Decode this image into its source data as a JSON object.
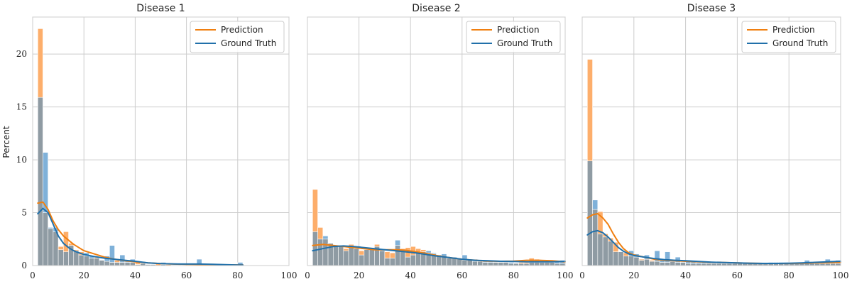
{
  "chart_data": {
    "type": "bar",
    "ylabel": "Percent",
    "xlim": [
      0,
      100
    ],
    "ylim": [
      0,
      23.5
    ],
    "bin_width": 2,
    "bin_start": 2,
    "x_ticks": [
      0,
      20,
      40,
      60,
      80,
      100
    ],
    "y_ticks": [
      0,
      5,
      10,
      15,
      20
    ],
    "grid": true,
    "legend_position": "top-right",
    "colors": {
      "prediction_fill": "#fdae6b",
      "ground_truth_fill": "#7fb1d9",
      "overlap_fill": "#8f9ba3",
      "prediction_line": "#f07f10",
      "ground_truth_line": "#2170aa"
    },
    "panels": [
      {
        "title": "Disease 1",
        "series": [
          {
            "name": "Prediction",
            "values": [
              22.4,
              5.0,
              3.5,
              3.2,
              1.8,
              3.2,
              2.1,
              1.5,
              1.3,
              0.9,
              0.7,
              0.8,
              0.5,
              0.4,
              0.3,
              0.5,
              0.3,
              0.3,
              0.3,
              0.4,
              0.2,
              0.1,
              0.1,
              0.2,
              0.1,
              0.1,
              0.0,
              0.0,
              0.0,
              0.0,
              0.0,
              0.0,
              0.0,
              0.0,
              0.0,
              0.0,
              0.0,
              0.0,
              0.0,
              0.0,
              0.0,
              0.0,
              0.0,
              0.0,
              0.0,
              0.0,
              0.0,
              0.0,
              0.0,
              0.0
            ],
            "kde_x": [
              2,
              4,
              6,
              8,
              10,
              12,
              14,
              16,
              18,
              20,
              24,
              28,
              32,
              36,
              40,
              45,
              50,
              55,
              60,
              65,
              70,
              75,
              80,
              82
            ],
            "kde_y": [
              5.9,
              6.0,
              5.3,
              4.2,
              3.4,
              2.8,
              2.4,
              2.0,
              1.7,
              1.4,
              1.1,
              0.8,
              0.6,
              0.45,
              0.35,
              0.25,
              0.18,
              0.14,
              0.12,
              0.1,
              0.08,
              0.07,
              0.06,
              0.06
            ]
          },
          {
            "name": "Ground Truth",
            "values": [
              15.9,
              10.7,
              3.6,
              3.6,
              1.5,
              1.3,
              1.9,
              1.4,
              1.0,
              1.2,
              0.9,
              0.7,
              0.5,
              0.9,
              1.9,
              0.3,
              1.0,
              0.5,
              0.6,
              0.1,
              0.2,
              0.1,
              0.1,
              0.0,
              0.3,
              0.0,
              0.0,
              0.0,
              0.0,
              0.0,
              0.0,
              0.6,
              0.0,
              0.0,
              0.0,
              0.0,
              0.0,
              0.0,
              0.0,
              0.3,
              0.0,
              0.0,
              0.0,
              0.0,
              0.0,
              0.0,
              0.0,
              0.0,
              0.0,
              0.0
            ],
            "kde_x": [
              2,
              4,
              6,
              8,
              10,
              12,
              14,
              16,
              18,
              20,
              24,
              28,
              32,
              36,
              40,
              45,
              50,
              55,
              60,
              65,
              70,
              75,
              80,
              82
            ],
            "kde_y": [
              4.9,
              5.4,
              5.0,
              3.9,
              2.8,
              2.1,
              1.7,
              1.4,
              1.2,
              1.05,
              0.85,
              0.7,
              0.6,
              0.5,
              0.4,
              0.25,
              0.18,
              0.15,
              0.14,
              0.14,
              0.12,
              0.08,
              0.05,
              0.05
            ]
          }
        ]
      },
      {
        "title": "Disease 2",
        "series": [
          {
            "name": "Prediction",
            "values": [
              7.2,
              3.6,
              2.5,
              2.1,
              1.9,
              1.8,
              1.6,
              2.0,
              1.6,
              1.4,
              1.5,
              1.7,
              2.0,
              1.4,
              1.3,
              1.2,
              1.9,
              1.6,
              1.7,
              1.8,
              1.6,
              1.5,
              1.2,
              1.1,
              1.0,
              0.8,
              0.8,
              0.7,
              0.6,
              0.5,
              0.6,
              0.4,
              0.4,
              0.3,
              0.3,
              0.3,
              0.3,
              0.3,
              0.2,
              0.2,
              0.3,
              0.3,
              0.7,
              0.6,
              0.5,
              0.4,
              0.3,
              0.2,
              0.2,
              0.2
            ],
            "kde_x": [
              2,
              6,
              10,
              14,
              18,
              22,
              26,
              30,
              34,
              38,
              42,
              46,
              50,
              55,
              60,
              65,
              70,
              75,
              80,
              85,
              90,
              95,
              100
            ],
            "kde_y": [
              1.9,
              2.0,
              1.9,
              1.8,
              1.7,
              1.6,
              1.5,
              1.5,
              1.5,
              1.45,
              1.3,
              1.15,
              0.95,
              0.75,
              0.6,
              0.5,
              0.42,
              0.4,
              0.42,
              0.5,
              0.5,
              0.45,
              0.35
            ]
          },
          {
            "name": "Ground Truth",
            "values": [
              3.2,
              2.5,
              2.8,
              2.1,
              1.9,
              1.8,
              1.4,
              1.8,
              1.6,
              1.0,
              1.5,
              1.6,
              1.8,
              1.5,
              0.7,
              0.7,
              2.4,
              1.5,
              0.8,
              1.0,
              1.2,
              1.3,
              1.4,
              1.2,
              1.0,
              1.1,
              0.7,
              0.8,
              0.7,
              1.0,
              0.5,
              0.6,
              0.5,
              0.4,
              0.4,
              0.3,
              0.3,
              0.3,
              0.3,
              0.2,
              0.2,
              0.2,
              0.3,
              0.3,
              0.3,
              0.3,
              0.4,
              0.4,
              0.5,
              1.2
            ],
            "kde_x": [
              2,
              6,
              10,
              14,
              18,
              22,
              26,
              30,
              34,
              38,
              42,
              46,
              50,
              55,
              60,
              65,
              70,
              75,
              80,
              85,
              90,
              95,
              100
            ],
            "kde_y": [
              1.4,
              1.6,
              1.8,
              1.85,
              1.8,
              1.7,
              1.6,
              1.5,
              1.4,
              1.3,
              1.2,
              1.05,
              0.9,
              0.75,
              0.6,
              0.5,
              0.45,
              0.4,
              0.38,
              0.35,
              0.35,
              0.35,
              0.4
            ]
          }
        ]
      },
      {
        "title": "Disease 3",
        "series": [
          {
            "name": "Prediction",
            "values": [
              19.5,
              5.3,
              5.1,
              3.0,
              2.6,
              2.2,
              1.3,
              1.2,
              0.9,
              0.8,
              0.6,
              0.6,
              0.5,
              0.4,
              0.3,
              0.3,
              0.4,
              0.3,
              0.3,
              0.2,
              0.2,
              0.2,
              0.2,
              0.2,
              0.2,
              0.2,
              0.2,
              0.2,
              0.2,
              0.2,
              0.2,
              0.2,
              0.2,
              0.2,
              0.2,
              0.2,
              0.2,
              0.2,
              0.2,
              0.2,
              0.2,
              0.2,
              0.2,
              0.2,
              0.2,
              0.2,
              0.2,
              0.2,
              0.2,
              0.2
            ],
            "kde_x": [
              2,
              4,
              6,
              8,
              10,
              12,
              14,
              16,
              18,
              20,
              24,
              28,
              32,
              36,
              40,
              45,
              50,
              55,
              60,
              65,
              70,
              75,
              80,
              85,
              90,
              95,
              100
            ],
            "kde_y": [
              4.5,
              4.8,
              4.9,
              4.5,
              3.9,
              3.0,
              2.2,
              1.6,
              1.2,
              1.0,
              0.8,
              0.6,
              0.5,
              0.45,
              0.4,
              0.35,
              0.3,
              0.28,
              0.25,
              0.22,
              0.2,
              0.2,
              0.2,
              0.22,
              0.25,
              0.27,
              0.3
            ]
          },
          {
            "name": "Ground Truth",
            "values": [
              9.9,
              6.2,
              3.0,
              2.7,
              2.3,
              1.3,
              1.3,
              0.9,
              1.4,
              1.1,
              0.5,
              1.0,
              0.4,
              1.4,
              0.5,
              1.3,
              0.5,
              0.8,
              0.3,
              0.4,
              0.4,
              0.3,
              0.3,
              0.3,
              0.3,
              0.4,
              0.3,
              0.2,
              0.3,
              0.3,
              0.3,
              0.2,
              0.2,
              0.2,
              0.2,
              0.3,
              0.3,
              0.3,
              0.3,
              0.2,
              0.3,
              0.3,
              0.5,
              0.3,
              0.3,
              0.3,
              0.6,
              0.4,
              0.5,
              0.7
            ],
            "kde_x": [
              2,
              4,
              6,
              8,
              10,
              12,
              14,
              16,
              18,
              20,
              24,
              28,
              32,
              36,
              40,
              45,
              50,
              55,
              60,
              65,
              70,
              75,
              80,
              85,
              90,
              95,
              100
            ],
            "kde_y": [
              2.9,
              3.2,
              3.3,
              3.1,
              2.7,
              2.2,
              1.7,
              1.35,
              1.1,
              0.95,
              0.8,
              0.65,
              0.55,
              0.5,
              0.45,
              0.38,
              0.32,
              0.28,
              0.25,
              0.22,
              0.2,
              0.2,
              0.22,
              0.25,
              0.3,
              0.35,
              0.4
            ]
          }
        ]
      }
    ]
  }
}
